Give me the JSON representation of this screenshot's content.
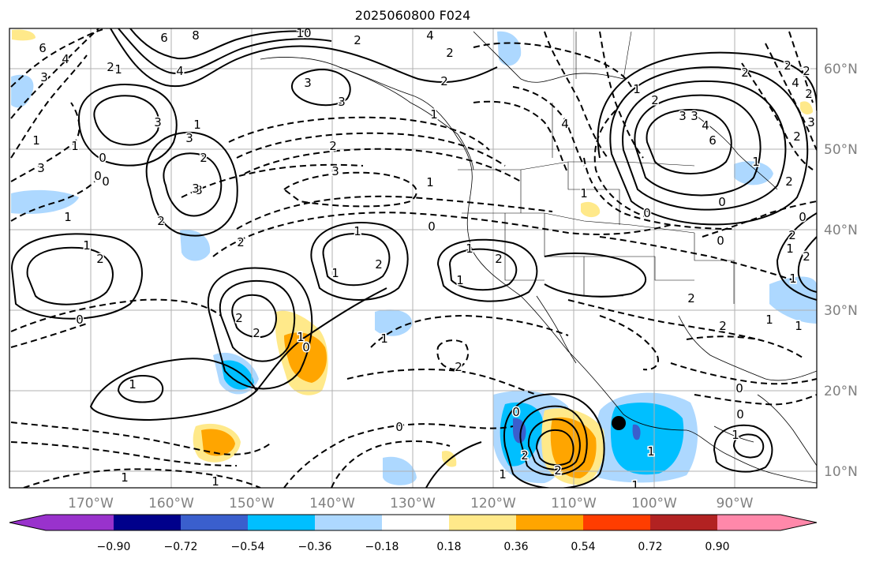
{
  "title": "2025060800 F024",
  "lon_labels": [
    "170°W",
    "160°W",
    "150°W",
    "140°W",
    "130°W",
    "120°W",
    "110°W",
    "100°W",
    "90°W"
  ],
  "lat_labels": [
    "60°N",
    "50°N",
    "40°N",
    "30°N",
    "20°N",
    "10°N"
  ],
  "colorbar": {
    "tick_labels": [
      "−0.90",
      "−0.72",
      "−0.54",
      "−0.36",
      "−0.18",
      "0.18",
      "0.36",
      "0.54",
      "0.72",
      "0.90"
    ],
    "colors": [
      "#9932cc",
      "#00008b",
      "#3a5fcd",
      "#00bfff",
      "#add8ff",
      "#ffffff",
      "#ffe98a",
      "#ffa500",
      "#ff3d00",
      "#b22222",
      "#ff88aa"
    ]
  },
  "contour_labels": [
    "6",
    "8",
    "4",
    "10",
    "4",
    "6",
    "4",
    "3",
    "3",
    "2",
    "2",
    "3",
    "2",
    "1",
    "1",
    "1",
    "3",
    "0",
    "0",
    "3",
    "1",
    "3",
    "2",
    "3",
    "2",
    "1",
    "2",
    "2",
    "1",
    "0",
    "0",
    "0",
    "1",
    "2",
    "2",
    "2",
    "3",
    "1",
    "4",
    "2",
    "3",
    "4",
    "6",
    "2",
    "0",
    "2",
    "1",
    "2",
    "0",
    "3",
    "2",
    "1",
    "2",
    "4",
    "2",
    "2",
    "1",
    "1",
    "1",
    "1",
    "1",
    "1",
    "0",
    "2",
    "0",
    "0",
    "1",
    "0",
    "2",
    "1",
    "1",
    "3",
    "2",
    "1",
    "2",
    "2",
    "1",
    "2",
    "1",
    "2",
    "1",
    "0",
    "2",
    "0",
    "1",
    "1",
    "0",
    "1",
    "1",
    "1",
    "3",
    "2"
  ],
  "marker": {
    "name": "location-marker"
  }
}
